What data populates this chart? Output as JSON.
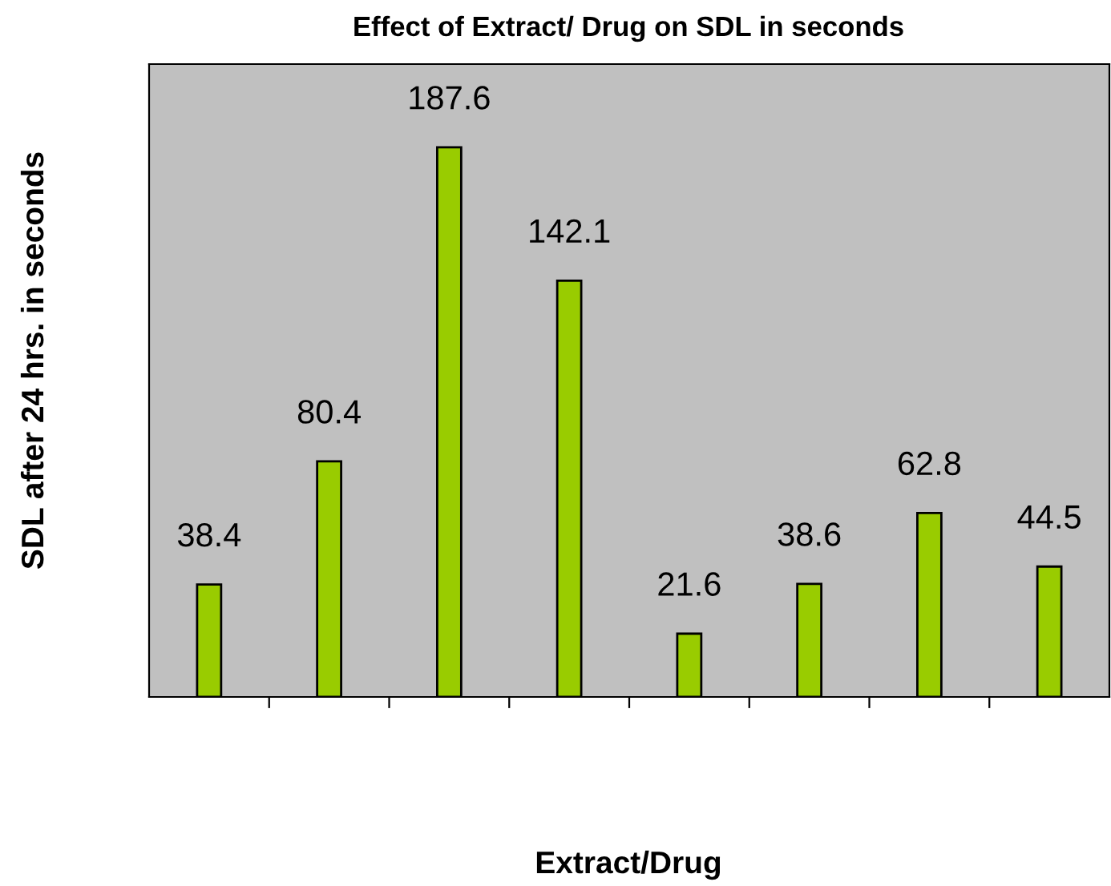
{
  "chart_data": {
    "type": "bar",
    "title": "Effect of Extract/ Drug on SDL in seconds",
    "xlabel": "Extract/Drug",
    "ylabel": "SDL after 24 hrs. in seconds",
    "categories": [
      null,
      null,
      null,
      null,
      null,
      null,
      null,
      null
    ],
    "values": [
      38.4,
      80.4,
      187.6,
      142.1,
      21.6,
      38.6,
      62.8,
      44.5
    ],
    "color": "#99cc00",
    "ylim": [
      0,
      216
    ],
    "data_labels": true,
    "grid": false,
    "legend": false
  }
}
